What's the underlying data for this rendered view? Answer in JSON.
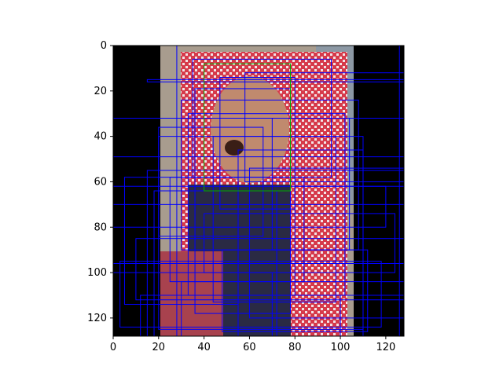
{
  "chart_data": {
    "type": "image",
    "title": "",
    "xlabel": "",
    "ylabel": "",
    "xlim": [
      0,
      128
    ],
    "ylim": [
      128,
      0
    ],
    "xticks": [
      0,
      20,
      40,
      60,
      80,
      100,
      120
    ],
    "yticks": [
      0,
      20,
      40,
      60,
      80,
      100,
      120
    ],
    "xtick_labels": [
      "0",
      "20",
      "40",
      "60",
      "80",
      "100",
      "120"
    ],
    "ytick_labels": [
      "0",
      "20",
      "40",
      "60",
      "80",
      "100",
      "120"
    ],
    "y_axis_inverted": true,
    "grid": false,
    "content": "person wearing a red-and-white patterned headscarf, overlaid with many blue bounding boxes and one green box",
    "colors": {
      "box_outline": "#0000ff",
      "highlight_box": "#00aa00",
      "background_letterbox": "#000000"
    },
    "boxes_highlight": [
      {
        "x0": 40,
        "y0": 8,
        "x1": 78,
        "y1": 64
      }
    ],
    "boxes": [
      {
        "x0": 0,
        "y0": 0,
        "x1": 128,
        "y1": 128
      },
      {
        "x0": 28,
        "y0": 0,
        "x1": 126,
        "y1": 128
      },
      {
        "x0": 15,
        "y0": 55,
        "x1": 128,
        "y1": 128
      },
      {
        "x0": 0,
        "y0": 32,
        "x1": 128,
        "y1": 49
      },
      {
        "x0": 15,
        "y0": 15,
        "x1": 128,
        "y1": 16
      },
      {
        "x0": 30,
        "y0": 24,
        "x1": 108,
        "y1": 90
      },
      {
        "x0": 33,
        "y0": 30,
        "x1": 102,
        "y1": 110
      },
      {
        "x0": 20,
        "y0": 40,
        "x1": 110,
        "y1": 125
      },
      {
        "x0": 36,
        "y0": 19,
        "x1": 78,
        "y1": 118
      },
      {
        "x0": 47,
        "y0": 14,
        "x1": 80,
        "y1": 72
      },
      {
        "x0": 44,
        "y0": 40,
        "x1": 98,
        "y1": 113
      },
      {
        "x0": 55,
        "y0": 46,
        "x1": 110,
        "y1": 128
      },
      {
        "x0": 0,
        "y0": 62,
        "x1": 120,
        "y1": 80
      },
      {
        "x0": 0,
        "y0": 70,
        "x1": 128,
        "y1": 96
      },
      {
        "x0": 10,
        "y0": 85,
        "x1": 128,
        "y1": 112
      },
      {
        "x0": 3,
        "y0": 95,
        "x1": 118,
        "y1": 124
      },
      {
        "x0": 25,
        "y0": 58,
        "x1": 84,
        "y1": 104
      },
      {
        "x0": 60,
        "y0": 54,
        "x1": 128,
        "y1": 120
      },
      {
        "x0": 18,
        "y0": 64,
        "x1": 72,
        "y1": 128
      },
      {
        "x0": 40,
        "y0": 74,
        "x1": 124,
        "y1": 100
      },
      {
        "x0": 30,
        "y0": 104,
        "x1": 128,
        "y1": 128
      },
      {
        "x0": 5,
        "y0": 58,
        "x1": 55,
        "y1": 114
      },
      {
        "x0": 70,
        "y0": 32,
        "x1": 104,
        "y1": 90
      },
      {
        "x0": 48,
        "y0": 90,
        "x1": 112,
        "y1": 126
      },
      {
        "x0": 20,
        "y0": 36,
        "x1": 66,
        "y1": 84
      },
      {
        "x0": 80,
        "y0": 62,
        "x1": 128,
        "y1": 110
      },
      {
        "x0": 35,
        "y0": 6,
        "x1": 96,
        "y1": 58
      },
      {
        "x0": 12,
        "y0": 110,
        "x1": 100,
        "y1": 128
      },
      {
        "x0": 0,
        "y0": 100,
        "x1": 70,
        "y1": 128
      },
      {
        "x0": 58,
        "y0": 12,
        "x1": 128,
        "y1": 60
      }
    ]
  }
}
